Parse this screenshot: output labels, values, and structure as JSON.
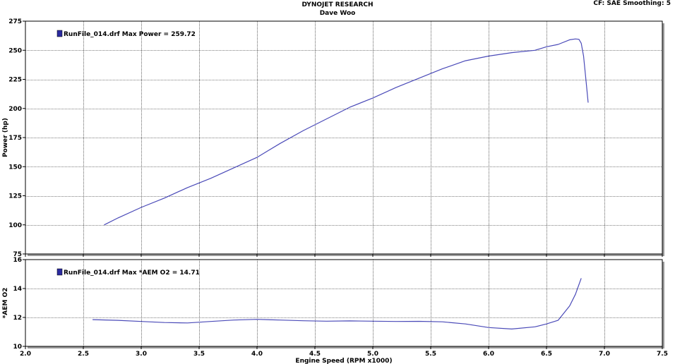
{
  "header": {
    "title": "DYNOJET RESEARCH",
    "subtitle": "Dave Woo",
    "corner": "CF: SAE  Smoothing: 5"
  },
  "colors": {
    "line": "#4a4ab8",
    "grid": "#000000",
    "legend_marker": "#2a2aa0"
  },
  "chart_data": [
    {
      "type": "line",
      "ylabel": "Power (hp)",
      "xlabel": "",
      "xlim": [
        2.0,
        7.5
      ],
      "ylim": [
        75,
        275
      ],
      "xticks": [
        2.0,
        2.5,
        3.0,
        3.5,
        4.0,
        4.5,
        5.0,
        5.5,
        6.0,
        6.5,
        7.0,
        7.5
      ],
      "yticks": [
        75,
        100,
        125,
        150,
        175,
        200,
        225,
        250,
        275
      ],
      "grid": true,
      "legend": "top-left",
      "legend_text": "RunFile_014.drf Max Power = 259.72",
      "series": [
        {
          "x": [
            2.68,
            2.8,
            3.0,
            3.2,
            3.4,
            3.6,
            3.8,
            4.0,
            4.2,
            4.4,
            4.6,
            4.8,
            5.0,
            5.2,
            5.4,
            5.6,
            5.8,
            6.0,
            6.2,
            6.4,
            6.5,
            6.6,
            6.7,
            6.75,
            6.78,
            6.8,
            6.82,
            6.84,
            6.86
          ],
          "y": [
            100,
            106,
            115,
            123,
            132,
            140,
            149,
            158,
            170,
            181,
            191,
            201,
            209,
            218,
            226,
            234,
            241,
            245,
            248,
            250,
            253,
            255,
            259,
            259.7,
            259.4,
            256,
            245,
            225,
            205
          ]
        }
      ]
    },
    {
      "type": "line",
      "ylabel": "*AEM O2",
      "xlabel": "Engine Speed (RPM x1000)",
      "xlim": [
        2.0,
        7.5
      ],
      "ylim": [
        10,
        16
      ],
      "xticks": [
        2.0,
        2.5,
        3.0,
        3.5,
        4.0,
        4.5,
        5.0,
        5.5,
        6.0,
        6.5,
        7.0,
        7.5
      ],
      "xtick_labels": [
        "2.0",
        "2.5",
        "3.0",
        "3.5",
        "4.0",
        "4.5",
        "5.0",
        "5.5",
        "6.0",
        "6.5",
        "7.0",
        "7.5"
      ],
      "yticks": [
        10,
        12,
        14,
        16
      ],
      "grid": true,
      "legend": "top-left",
      "legend_text": "RunFile_014.drf Max *AEM O2 = 14.71",
      "series": [
        {
          "x": [
            2.58,
            2.8,
            3.0,
            3.2,
            3.4,
            3.6,
            3.8,
            4.0,
            4.2,
            4.4,
            4.6,
            4.8,
            5.0,
            5.2,
            5.4,
            5.6,
            5.8,
            6.0,
            6.2,
            6.4,
            6.5,
            6.6,
            6.7,
            6.75,
            6.8
          ],
          "y": [
            11.85,
            11.8,
            11.72,
            11.65,
            11.62,
            11.72,
            11.82,
            11.87,
            11.82,
            11.77,
            11.74,
            11.76,
            11.74,
            11.72,
            11.73,
            11.7,
            11.55,
            11.3,
            11.2,
            11.35,
            11.55,
            11.8,
            12.8,
            13.6,
            14.71
          ]
        }
      ]
    }
  ]
}
